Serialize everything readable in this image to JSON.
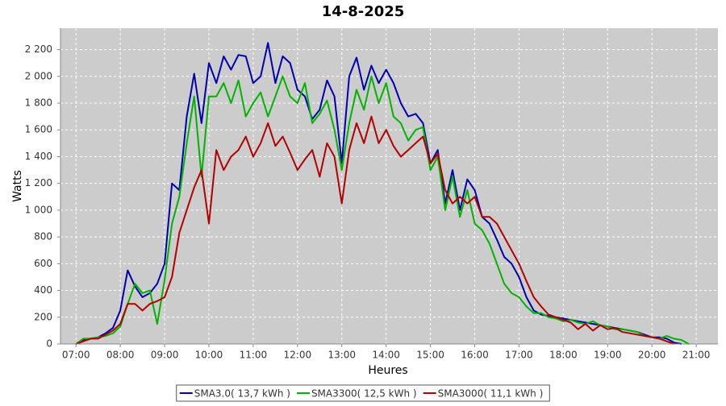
{
  "chart_data": {
    "type": "line",
    "title": "14-8-2025",
    "x_label": "Heures",
    "y_label": "Watts",
    "x": [
      7,
      7.167,
      7.333,
      7.5,
      7.667,
      7.833,
      8,
      8.167,
      8.333,
      8.5,
      8.667,
      8.833,
      9,
      9.167,
      9.333,
      9.5,
      9.667,
      9.833,
      10,
      10.167,
      10.333,
      10.5,
      10.667,
      10.833,
      11,
      11.167,
      11.333,
      11.5,
      11.667,
      11.833,
      12,
      12.167,
      12.333,
      12.5,
      12.667,
      12.833,
      13,
      13.167,
      13.333,
      13.5,
      13.667,
      13.833,
      14,
      14.167,
      14.333,
      14.5,
      14.667,
      14.833,
      15,
      15.167,
      15.333,
      15.5,
      15.667,
      15.833,
      16,
      16.167,
      16.333,
      16.5,
      16.667,
      16.833,
      17,
      17.167,
      17.333,
      17.5,
      17.667,
      17.833,
      18,
      18.167,
      18.333,
      18.5,
      18.667,
      18.833,
      19,
      19.167,
      19.333,
      19.5,
      19.667,
      19.833,
      20,
      20.167,
      20.333,
      20.5,
      20.667,
      20.833
    ],
    "series": [
      {
        "name": "SMA3.0( 13,7 kWh )",
        "color": "#0000b0",
        "values": [
          0,
          30,
          40,
          50,
          80,
          120,
          250,
          550,
          430,
          350,
          380,
          450,
          600,
          1200,
          1150,
          1700,
          2020,
          1650,
          2100,
          1950,
          2150,
          2050,
          2160,
          2150,
          1950,
          2000,
          2250,
          1950,
          2150,
          2100,
          1900,
          1850,
          1680,
          1750,
          1970,
          1850,
          1350,
          2000,
          2140,
          1900,
          2080,
          1950,
          2050,
          1950,
          1800,
          1700,
          1720,
          1650,
          1350,
          1450,
          1050,
          1300,
          1000,
          1230,
          1150,
          950,
          900,
          780,
          650,
          600,
          500,
          350,
          250,
          220,
          210,
          200,
          190,
          180,
          170,
          160,
          150,
          140,
          130,
          120,
          110,
          100,
          90,
          70,
          50,
          50,
          40,
          10,
          0,
          null
        ]
      },
      {
        "name": "SMA3300( 12,5 kWh )",
        "color": "#00b400",
        "values": [
          0,
          40,
          40,
          50,
          60,
          80,
          130,
          300,
          450,
          380,
          400,
          150,
          480,
          900,
          1100,
          1500,
          1850,
          1250,
          1850,
          1850,
          1950,
          1800,
          1970,
          1700,
          1800,
          1880,
          1700,
          1850,
          2000,
          1850,
          1800,
          1950,
          1650,
          1720,
          1820,
          1600,
          1300,
          1650,
          1900,
          1750,
          2000,
          1800,
          1950,
          1700,
          1650,
          1520,
          1600,
          1620,
          1300,
          1400,
          1000,
          1250,
          950,
          1150,
          900,
          850,
          750,
          600,
          450,
          380,
          350,
          280,
          230,
          230,
          200,
          190,
          170,
          180,
          160,
          150,
          170,
          140,
          130,
          110,
          110,
          100,
          90,
          60,
          50,
          40,
          60,
          40,
          30,
          0
        ]
      },
      {
        "name": "SMA3000( 11,1 kWh )",
        "color": "#b40000",
        "values": [
          0,
          20,
          40,
          40,
          70,
          100,
          150,
          300,
          300,
          250,
          300,
          320,
          350,
          500,
          830,
          1000,
          1170,
          1300,
          900,
          1450,
          1300,
          1400,
          1450,
          1550,
          1400,
          1500,
          1650,
          1480,
          1550,
          1430,
          1300,
          1380,
          1450,
          1250,
          1500,
          1400,
          1050,
          1450,
          1650,
          1500,
          1700,
          1500,
          1600,
          1480,
          1400,
          1450,
          1500,
          1550,
          1350,
          1420,
          1150,
          1050,
          1100,
          1050,
          1100,
          950,
          950,
          900,
          800,
          700,
          600,
          470,
          350,
          280,
          220,
          200,
          180,
          160,
          110,
          150,
          100,
          140,
          110,
          120,
          90,
          80,
          70,
          60,
          50,
          40,
          20,
          0,
          null,
          null
        ]
      }
    ],
    "xlim": [
      6.65,
      21.49
    ],
    "xticks": [
      {
        "value": 7,
        "label": "07:00"
      },
      {
        "value": 8,
        "label": "08:00"
      },
      {
        "value": 9,
        "label": "09:00"
      },
      {
        "value": 10,
        "label": "10:00"
      },
      {
        "value": 11,
        "label": "11:00"
      },
      {
        "value": 12,
        "label": "12:00"
      },
      {
        "value": 13,
        "label": "13:00"
      },
      {
        "value": 14,
        "label": "14:00"
      },
      {
        "value": 15,
        "label": "15:00"
      },
      {
        "value": 16,
        "label": "16:00"
      },
      {
        "value": 17,
        "label": "17:00"
      },
      {
        "value": 18,
        "label": "18:00"
      },
      {
        "value": 19,
        "label": "19:00"
      },
      {
        "value": 20,
        "label": "20:00"
      },
      {
        "value": 21,
        "label": "21:00"
      }
    ],
    "ylim": [
      0,
      2360
    ],
    "yticks": [
      0,
      200,
      400,
      600,
      800,
      {
        "value": 1000,
        "label": "1 000"
      },
      {
        "value": 1200,
        "label": "1 200"
      },
      {
        "value": 1400,
        "label": "1 400"
      },
      {
        "value": 1600,
        "label": "1 600"
      },
      {
        "value": 1800,
        "label": "1 800"
      },
      {
        "value": 2000,
        "label": "2 000"
      },
      {
        "value": 2200,
        "label": "2 200"
      }
    ],
    "grid": true,
    "legend": "bottom"
  }
}
